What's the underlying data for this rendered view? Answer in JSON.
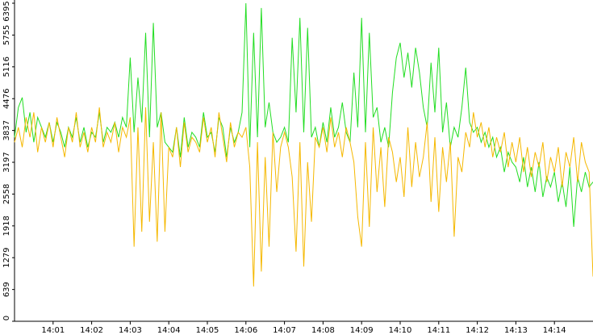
{
  "chart_data": {
    "type": "line",
    "x": [
      0,
      0.1,
      0.2,
      0.3,
      0.4,
      0.5,
      0.6,
      0.7,
      0.8,
      0.9,
      1,
      1.1,
      1.2,
      1.3,
      1.4,
      1.5,
      1.6,
      1.7,
      1.8,
      1.9,
      2,
      2.1,
      2.2,
      2.3,
      2.4,
      2.5,
      2.6,
      2.7,
      2.8,
      2.9,
      3,
      3.1,
      3.2,
      3.3,
      3.4,
      3.5,
      3.6,
      3.7,
      3.8,
      3.9,
      4,
      4.1,
      4.2,
      4.3,
      4.4,
      4.5,
      4.6,
      4.7,
      4.8,
      4.9,
      5,
      5.1,
      5.2,
      5.3,
      5.4,
      5.5,
      5.6,
      5.7,
      5.8,
      5.9,
      6,
      6.1,
      6.2,
      6.3,
      6.4,
      6.5,
      6.6,
      6.7,
      6.8,
      6.9,
      7,
      7.1,
      7.2,
      7.3,
      7.4,
      7.5,
      7.6,
      7.7,
      7.8,
      7.9,
      8,
      8.1,
      8.2,
      8.3,
      8.4,
      8.5,
      8.6,
      8.7,
      8.8,
      8.9,
      9,
      9.1,
      9.2,
      9.3,
      9.4,
      9.5,
      9.6,
      9.7,
      9.8,
      9.9,
      10,
      10.1,
      10.2,
      10.3,
      10.4,
      10.5,
      10.6,
      10.7,
      10.8,
      10.9,
      11,
      11.1,
      11.2,
      11.3,
      11.4,
      11.5,
      11.6,
      11.7,
      11.8,
      11.9,
      12,
      12.1,
      12.2,
      12.3,
      12.4,
      12.5,
      12.6,
      12.7,
      12.8,
      12.9,
      13,
      13.1,
      13.2,
      13.3,
      13.4,
      13.5,
      13.6,
      13.7,
      13.8,
      13.9,
      14,
      14.1,
      14.2,
      14.3,
      14.4,
      14.5,
      14.6,
      14.7,
      14.8,
      14.9,
      15
    ],
    "series": [
      {
        "color": "#22dd22",
        "values": [
          3700,
          4300,
          4500,
          3800,
          4200,
          3600,
          4100,
          3900,
          3700,
          4000,
          3600,
          4000,
          3800,
          3500,
          3900,
          3700,
          4100,
          3600,
          3900,
          3500,
          3800,
          3700,
          4200,
          3600,
          3900,
          3800,
          4000,
          3700,
          4100,
          3900,
          5300,
          3800,
          4900,
          4000,
          5800,
          3700,
          6000,
          3900,
          4200,
          3600,
          3500,
          3400,
          3900,
          3300,
          4100,
          3500,
          3800,
          3700,
          3500,
          4200,
          3700,
          3800,
          3400,
          4100,
          3900,
          3300,
          3900,
          3600,
          3800,
          4200,
          6395,
          3500,
          5800,
          3700,
          6300,
          3900,
          4400,
          3800,
          3600,
          3700,
          3900,
          3600,
          5700,
          4200,
          6100,
          3800,
          5900,
          3700,
          3900,
          3500,
          4000,
          3600,
          4300,
          3700,
          3900,
          4400,
          3800,
          3600,
          5000,
          3900,
          6100,
          3800,
          5800,
          4100,
          4300,
          3600,
          3900,
          3500,
          4600,
          5300,
          5600,
          4900,
          5400,
          4700,
          5500,
          5000,
          4300,
          3900,
          5200,
          4200,
          5500,
          3800,
          4400,
          3500,
          3900,
          3700,
          4300,
          5100,
          4000,
          3800,
          3900,
          3600,
          3800,
          3500,
          3700,
          3300,
          3500,
          3000,
          3400,
          3200,
          3100,
          2800,
          3300,
          2700,
          3100,
          2600,
          3200,
          2500,
          2900,
          2700,
          3000,
          2400,
          2800,
          2300,
          3100,
          1900,
          2900,
          2600,
          3000,
          2700,
          2800
        ]
      },
      {
        "color": "#f5b800",
        "values": [
          3600,
          3900,
          3500,
          4100,
          3700,
          4200,
          3400,
          3900,
          3600,
          4000,
          3500,
          4100,
          3700,
          3300,
          3900,
          3600,
          4200,
          3500,
          3800,
          3400,
          3900,
          3600,
          4300,
          3500,
          3800,
          3600,
          4000,
          3400,
          3900,
          3700,
          4100,
          1500,
          3900,
          1800,
          4300,
          2000,
          3600,
          1600,
          4200,
          1800,
          3500,
          3300,
          3900,
          3100,
          4000,
          3400,
          3700,
          3600,
          3400,
          4100,
          3600,
          3900,
          3300,
          4200,
          3700,
          3200,
          4000,
          3500,
          3800,
          3700,
          3900,
          3100,
          700,
          3600,
          1000,
          3300,
          1500,
          3800,
          2600,
          3500,
          3800,
          3500,
          2900,
          1400,
          3600,
          1100,
          3200,
          2000,
          3700,
          3500,
          3900,
          3400,
          4100,
          3500,
          3800,
          3300,
          3900,
          3600,
          3200,
          2100,
          1500,
          3600,
          1900,
          3900,
          2600,
          3500,
          2300,
          3700,
          3400,
          2800,
          3300,
          2500,
          3900,
          2700,
          3600,
          2900,
          3300,
          4000,
          2400,
          3700,
          2200,
          3500,
          2800,
          3600,
          1700,
          3300,
          3000,
          3800,
          3500,
          4200,
          3700,
          4000,
          3500,
          3900,
          3300,
          3700,
          3400,
          3800,
          3100,
          3600,
          3200,
          3700,
          3000,
          3500,
          2900,
          3400,
          3100,
          3600,
          2800,
          3300,
          3000,
          3500,
          2700,
          3400,
          3100,
          3700,
          2800,
          3600,
          3200,
          3000,
          900
        ]
      }
    ],
    "xlim": [
      0,
      15
    ],
    "xticks": [
      {
        "value": 1,
        "label": "14:01"
      },
      {
        "value": 2,
        "label": "14:02"
      },
      {
        "value": 3,
        "label": "14:03"
      },
      {
        "value": 4,
        "label": "14:04"
      },
      {
        "value": 5,
        "label": "14:05"
      },
      {
        "value": 6,
        "label": "14:06"
      },
      {
        "value": 7,
        "label": "14:07"
      },
      {
        "value": 8,
        "label": "14:08"
      },
      {
        "value": 9,
        "label": "14:09"
      },
      {
        "value": 10,
        "label": "14:10"
      },
      {
        "value": 11,
        "label": "14:11"
      },
      {
        "value": 12,
        "label": "14:12"
      },
      {
        "value": 13,
        "label": "14:13"
      },
      {
        "value": 14,
        "label": "14:14"
      }
    ],
    "ylim": [
      0,
      6395
    ],
    "yticks": [
      0,
      639,
      1279,
      1918,
      2558,
      3197,
      3837,
      4476,
      5116,
      5755,
      6395
    ]
  }
}
